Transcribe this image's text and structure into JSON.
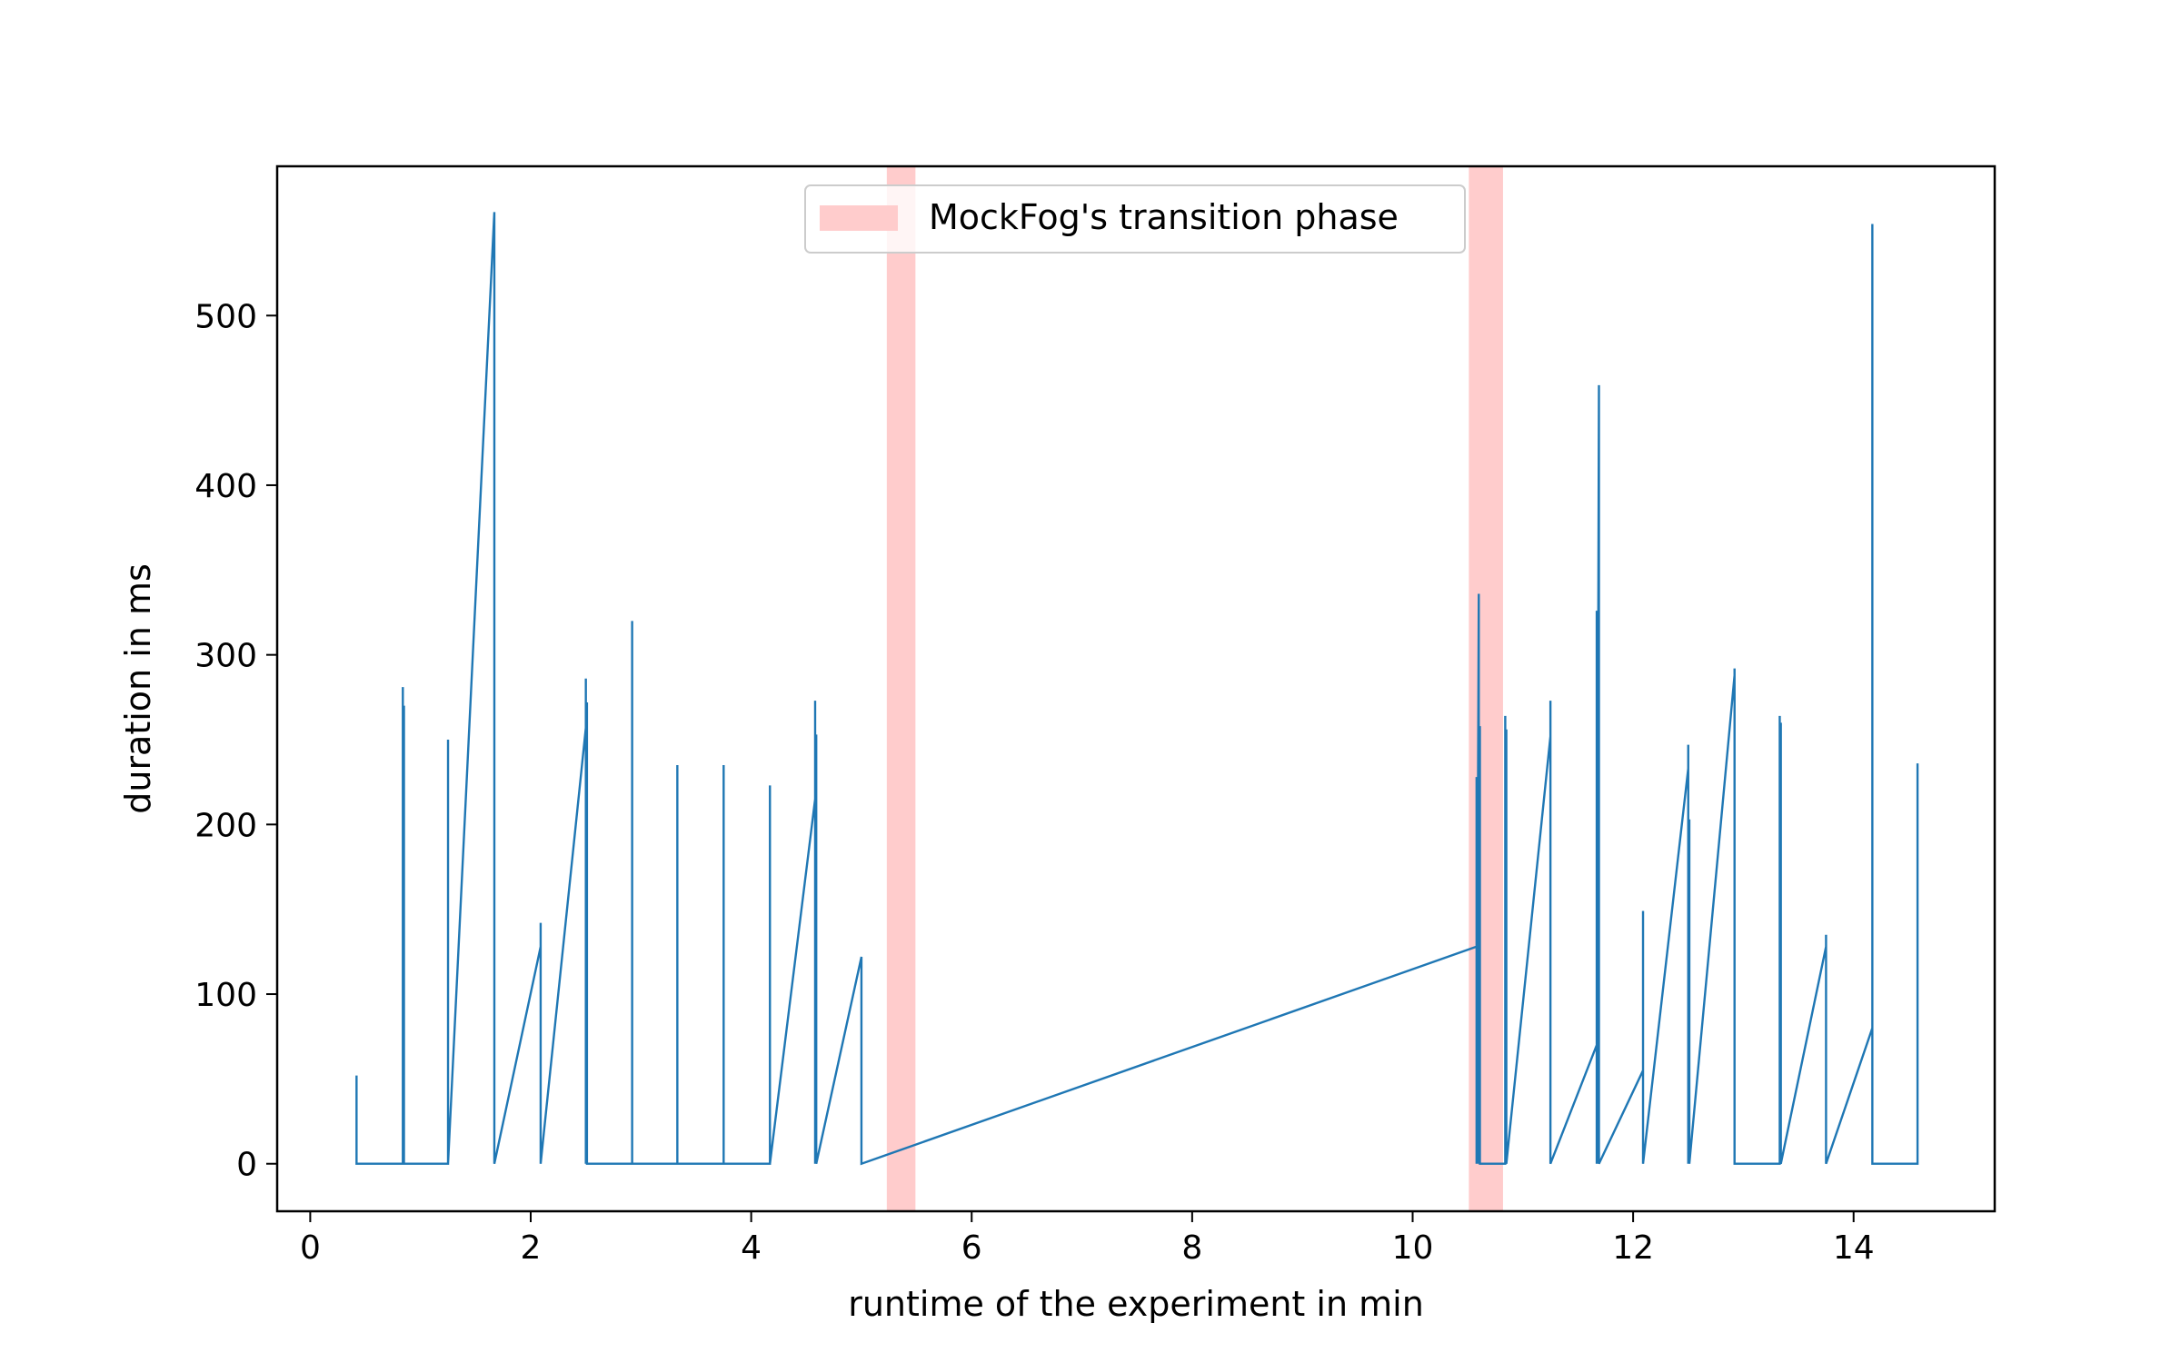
{
  "chart_data": {
    "type": "line",
    "title": "",
    "xlabel": "runtime of the experiment in min",
    "ylabel": "duration in ms",
    "xlim": [
      -0.3,
      15.28
    ],
    "ylim": [
      -28,
      588
    ],
    "xticks": [
      0,
      2,
      4,
      6,
      8,
      10,
      12,
      14
    ],
    "yticks": [
      0,
      100,
      200,
      300,
      400,
      500
    ],
    "grid": false,
    "legend_position": "upper center",
    "colors": {
      "line": "#1f77b4",
      "phase": "#ffcccc"
    },
    "transition_phases": [
      {
        "start": 5.23,
        "end": 5.49
      },
      {
        "start": 10.51,
        "end": 10.82
      }
    ],
    "legend": [
      {
        "label": "MockFog's transition phase",
        "color": "#ffcccc"
      }
    ],
    "series": [
      {
        "name": "",
        "points": [
          [
            0.42,
            0
          ],
          [
            0.42,
            52
          ],
          [
            0.42,
            0
          ],
          [
            0.84,
            0
          ],
          [
            0.84,
            281
          ],
          [
            0.84,
            0
          ],
          [
            0.85,
            270
          ],
          [
            0.85,
            0
          ],
          [
            1.25,
            0
          ],
          [
            1.25,
            250
          ],
          [
            1.25,
            0
          ],
          [
            1.67,
            561
          ],
          [
            1.67,
            0
          ],
          [
            2.09,
            128
          ],
          [
            2.09,
            142
          ],
          [
            2.09,
            0
          ],
          [
            2.5,
            257
          ],
          [
            2.5,
            286
          ],
          [
            2.5,
            0
          ],
          [
            2.51,
            272
          ],
          [
            2.51,
            0
          ],
          [
            2.92,
            0
          ],
          [
            2.92,
            320
          ],
          [
            2.92,
            0
          ],
          [
            3.33,
            0
          ],
          [
            3.33,
            235
          ],
          [
            3.33,
            0
          ],
          [
            3.75,
            0
          ],
          [
            3.75,
            235
          ],
          [
            3.75,
            0
          ],
          [
            4.17,
            0
          ],
          [
            4.17,
            223
          ],
          [
            4.17,
            0
          ],
          [
            4.58,
            215
          ],
          [
            4.58,
            273
          ],
          [
            4.58,
            0
          ],
          [
            4.59,
            253
          ],
          [
            4.59,
            0
          ],
          [
            5.0,
            122
          ],
          [
            5.0,
            0
          ],
          [
            10.58,
            128
          ],
          [
            10.58,
            228
          ],
          [
            10.58,
            0
          ],
          [
            10.6,
            336
          ],
          [
            10.6,
            0
          ],
          [
            10.61,
            258
          ],
          [
            10.61,
            0
          ],
          [
            10.84,
            0
          ],
          [
            10.84,
            264
          ],
          [
            10.84,
            0
          ],
          [
            10.85,
            256
          ],
          [
            10.85,
            0
          ],
          [
            11.25,
            252
          ],
          [
            11.25,
            273
          ],
          [
            11.25,
            0
          ],
          [
            11.67,
            70
          ],
          [
            11.67,
            326
          ],
          [
            11.67,
            0
          ],
          [
            11.69,
            459
          ],
          [
            11.69,
            0
          ],
          [
            12.09,
            55
          ],
          [
            12.09,
            149
          ],
          [
            12.09,
            0
          ],
          [
            12.5,
            233
          ],
          [
            12.5,
            247
          ],
          [
            12.5,
            0
          ],
          [
            12.51,
            203
          ],
          [
            12.51,
            0
          ],
          [
            12.92,
            288
          ],
          [
            12.92,
            292
          ],
          [
            12.92,
            0
          ],
          [
            13.33,
            0
          ],
          [
            13.33,
            264
          ],
          [
            13.33,
            0
          ],
          [
            13.34,
            260
          ],
          [
            13.34,
            0
          ],
          [
            13.75,
            128
          ],
          [
            13.75,
            135
          ],
          [
            13.75,
            0
          ],
          [
            14.17,
            80
          ],
          [
            14.17,
            554
          ],
          [
            14.17,
            0
          ],
          [
            14.58,
            0
          ],
          [
            14.58,
            236
          ],
          [
            14.58,
            0
          ]
        ]
      }
    ]
  }
}
